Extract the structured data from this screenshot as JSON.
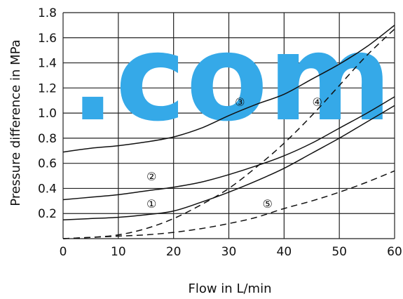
{
  "chart_data": {
    "type": "line",
    "title": "",
    "xlabel": "Flow in L/min",
    "ylabel": "Pressure difference in MPa",
    "xlim": [
      0,
      60
    ],
    "ylim": [
      0,
      1.8
    ],
    "x_ticks": [
      "0",
      "10",
      "20",
      "30",
      "40",
      "50",
      "60"
    ],
    "y_ticks": [
      "",
      "0.2",
      "0.4",
      "0.6",
      "0.8",
      "1.0",
      "1.2",
      "1.4",
      "1.6",
      "1.8"
    ],
    "grid": true,
    "series": [
      {
        "name": "①",
        "style": "solid",
        "x": [
          0,
          5,
          10,
          15,
          20,
          25,
          30,
          35,
          40,
          45,
          50,
          55,
          60
        ],
        "y": [
          0.15,
          0.16,
          0.17,
          0.19,
          0.22,
          0.29,
          0.37,
          0.46,
          0.56,
          0.68,
          0.8,
          0.93,
          1.06
        ]
      },
      {
        "name": "②",
        "style": "solid",
        "x": [
          0,
          5,
          10,
          15,
          20,
          25,
          30,
          35,
          40,
          45,
          50,
          55,
          60
        ],
        "y": [
          0.31,
          0.33,
          0.35,
          0.38,
          0.41,
          0.45,
          0.51,
          0.58,
          0.66,
          0.76,
          0.88,
          1.0,
          1.13
        ]
      },
      {
        "name": "③",
        "style": "solid",
        "x": [
          0,
          5,
          10,
          15,
          20,
          25,
          30,
          35,
          40,
          45,
          50,
          55,
          60
        ],
        "y": [
          0.69,
          0.72,
          0.74,
          0.77,
          0.81,
          0.88,
          0.98,
          1.07,
          1.15,
          1.27,
          1.39,
          1.53,
          1.7
        ]
      },
      {
        "name": "④",
        "style": "dashed",
        "x": [
          0,
          5,
          10,
          15,
          20,
          25,
          30,
          35,
          40,
          45,
          50,
          55,
          60
        ],
        "y": [
          0.0,
          0.01,
          0.03,
          0.08,
          0.16,
          0.27,
          0.4,
          0.57,
          0.76,
          0.98,
          1.22,
          1.46,
          1.67
        ]
      },
      {
        "name": "⑤",
        "style": "dashed",
        "x": [
          0,
          5,
          10,
          15,
          20,
          25,
          30,
          35,
          40,
          45,
          50,
          55,
          60
        ],
        "y": [
          0.0,
          0.01,
          0.02,
          0.03,
          0.05,
          0.08,
          0.12,
          0.17,
          0.24,
          0.3,
          0.37,
          0.45,
          0.54
        ]
      }
    ],
    "curve_labels": [
      {
        "text": "①",
        "x": 16,
        "y": 0.29
      },
      {
        "text": "②",
        "x": 16,
        "y": 0.51
      },
      {
        "text": "③",
        "x": 32,
        "y": 1.1
      },
      {
        "text": "④",
        "x": 46,
        "y": 1.1
      },
      {
        "text": "⑤",
        "x": 37,
        "y": 0.29
      }
    ]
  },
  "watermark": {
    "text": ".com",
    "color": "#35a9e8"
  }
}
